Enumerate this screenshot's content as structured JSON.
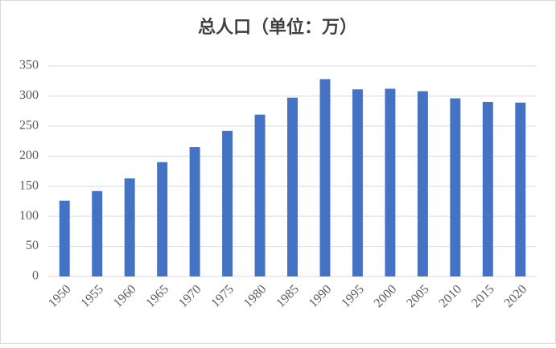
{
  "chart_data": {
    "type": "bar",
    "title": "总人口（单位：万）",
    "categories": [
      "1950",
      "1955",
      "1960",
      "1965",
      "1970",
      "1975",
      "1980",
      "1985",
      "1990",
      "1995",
      "2000",
      "2005",
      "2010",
      "2015",
      "2020"
    ],
    "values": [
      126,
      142,
      163,
      190,
      215,
      242,
      269,
      297,
      328,
      311,
      312,
      308,
      296,
      290,
      289
    ],
    "color": "#4472c4",
    "ylim": [
      0,
      350
    ],
    "yticks": [
      0,
      50,
      100,
      150,
      200,
      250,
      300,
      350
    ],
    "grid": true
  }
}
